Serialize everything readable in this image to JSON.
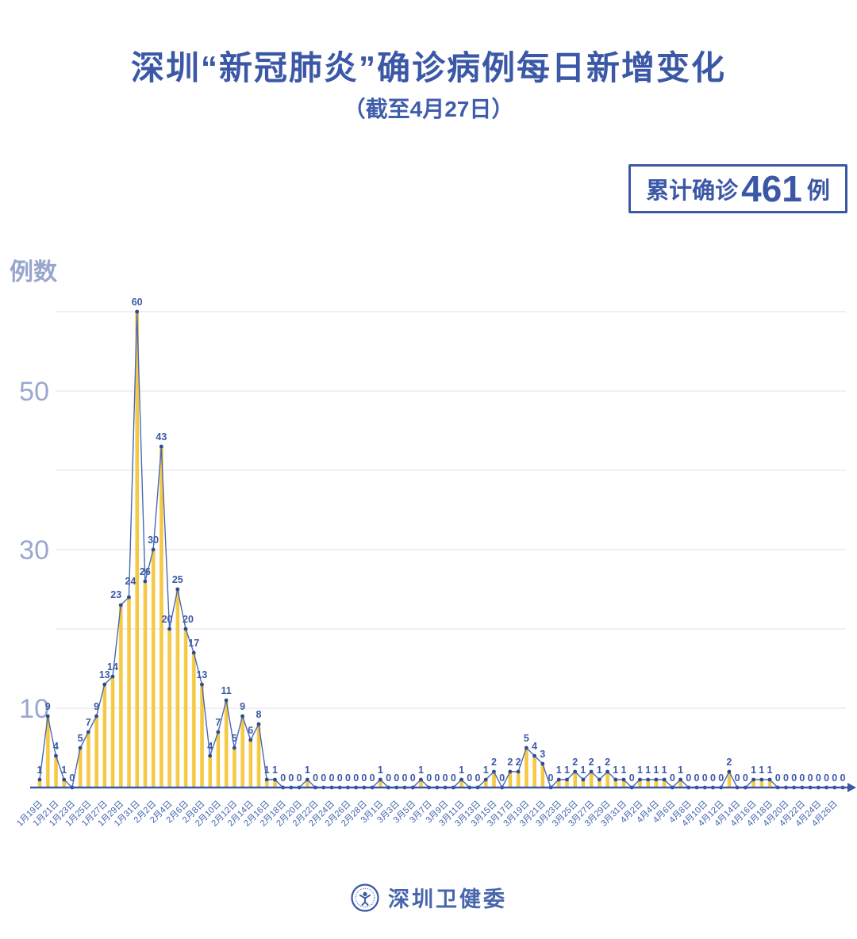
{
  "header": {
    "title": "深圳“新冠肺炎”确诊病例每日新增变化",
    "subtitle": "（截至4月27日）"
  },
  "badge": {
    "prefix": "累计确诊",
    "value": "461",
    "suffix": "例"
  },
  "footer": {
    "org_name": "深圳卫健委",
    "logo_icon": "shenzhen-health-commission-emblem"
  },
  "chart_data": {
    "type": "bar",
    "subtype": "lollipop-bars-with-line-and-point-labels",
    "title": "深圳“新冠肺炎”确诊病例每日新增变化",
    "xlabel": "",
    "ylabel": "例数",
    "ylim": [
      0,
      62
    ],
    "y_tick_labels": [
      10,
      30,
      50
    ],
    "gridline_values": [
      10,
      20,
      30,
      40,
      50,
      60
    ],
    "legend": "none",
    "date_range": "1月19日 — 4月27日 (每日一点, 共100天)",
    "x_tick_labels": [
      "1月19日",
      "1月21日",
      "1月23日",
      "1月25日",
      "1月27日",
      "1月29日",
      "1月31日",
      "2月2日",
      "2月4日",
      "2月6日",
      "2月8日",
      "2月10日",
      "2月12日",
      "2月14日",
      "2月16日",
      "2月18日",
      "2月20日",
      "2月22日",
      "2月24日",
      "2月26日",
      "2月28日",
      "3月1日",
      "3月3日",
      "3月5日",
      "3月7日",
      "3月9日",
      "3月11日",
      "3月13日",
      "3月15日",
      "3月17日",
      "3月19日",
      "3月21日",
      "3月23日",
      "3月25日",
      "3月27日",
      "3月29日",
      "3月31日",
      "4月2日",
      "4月4日",
      "4月6日",
      "4月8日",
      "4月10日",
      "4月12日",
      "4月14日",
      "4月16日",
      "4月18日",
      "4月20日",
      "4月22日",
      "4月24日",
      "4月26日"
    ],
    "x_tick_every": 2,
    "values": [
      1,
      9,
      4,
      1,
      0,
      5,
      7,
      9,
      13,
      14,
      23,
      24,
      60,
      26,
      30,
      43,
      20,
      25,
      20,
      17,
      13,
      4,
      7,
      11,
      5,
      9,
      6,
      8,
      1,
      1,
      0,
      0,
      0,
      1,
      0,
      0,
      0,
      0,
      0,
      0,
      0,
      0,
      1,
      0,
      0,
      0,
      0,
      1,
      0,
      0,
      0,
      0,
      1,
      0,
      0,
      1,
      2,
      0,
      2,
      2,
      5,
      4,
      3,
      0,
      1,
      1,
      2,
      1,
      2,
      1,
      2,
      1,
      1,
      0,
      1,
      1,
      1,
      1,
      0,
      1,
      0,
      0,
      0,
      0,
      0,
      2,
      0,
      0,
      1,
      1,
      1,
      0,
      0,
      0,
      0,
      0,
      0,
      0,
      0,
      0
    ],
    "values_total": 461,
    "colors": {
      "bar": "#f2c334",
      "bar_light": "#f8d057",
      "line": "#4a69b4",
      "dot": "#2d4b95",
      "point_label": "#3b59a6",
      "axis": "#3b58a7",
      "grid": "#e6e6ec",
      "y_tick_text": "#9aa8cf",
      "x_tick_text": "#4363ae",
      "title_text": "#3b58a7"
    }
  }
}
